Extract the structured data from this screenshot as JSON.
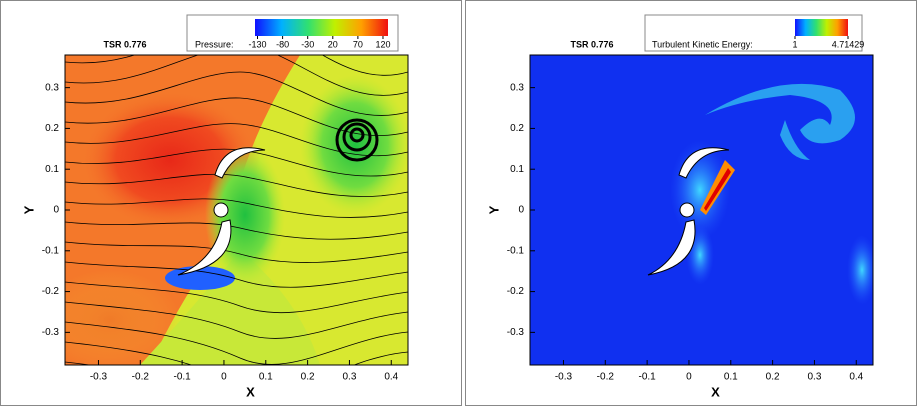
{
  "chart_data": [
    {
      "type": "contour",
      "title": "TSR 0.776",
      "xlabel": "X",
      "ylabel": "Y",
      "xlim": [
        -0.38,
        0.44
      ],
      "ylim": [
        -0.38,
        0.38
      ],
      "xticks": [
        -0.3,
        -0.2,
        -0.1,
        0,
        0.1,
        0.2,
        0.3,
        0.4
      ],
      "yticks": [
        -0.3,
        -0.2,
        -0.1,
        0,
        0.1,
        0.2,
        0.3
      ],
      "colorbar_label": "Pressure:",
      "clim": [
        -135,
        130
      ],
      "colorbar_ticks": [
        -130,
        -80,
        -30,
        20,
        70,
        120
      ]
    },
    {
      "type": "contour",
      "title": "TSR 0.776",
      "xlabel": "X",
      "ylabel": "Y",
      "xlim": [
        -0.38,
        0.44
      ],
      "ylim": [
        -0.38,
        0.38
      ],
      "xticks": [
        -0.3,
        -0.2,
        -0.1,
        0,
        0.1,
        0.2,
        0.3,
        0.4
      ],
      "yticks": [
        -0.3,
        -0.2,
        -0.1,
        0,
        0.1,
        0.2,
        0.3
      ],
      "colorbar_label": "Turbulent Kinetic Energy:",
      "clim": [
        1,
        4.71429
      ],
      "colorbar_ticks": [
        1,
        4.71429
      ]
    }
  ]
}
